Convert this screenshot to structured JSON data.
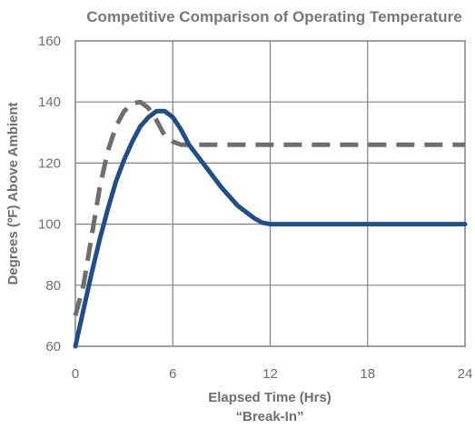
{
  "chart_data": {
    "type": "line",
    "title": "Competitive Comparison of Operating Temperature",
    "xlabel": "Elapsed Time (Hrs)",
    "xlabel_sub": "“Break-In”",
    "ylabel": "Degrees (ºF) Above Ambient",
    "xlim": [
      0,
      24
    ],
    "ylim": [
      60,
      160
    ],
    "xticks": [
      0,
      6,
      12,
      18,
      24
    ],
    "yticks": [
      60,
      80,
      100,
      120,
      140,
      160
    ],
    "grid": true,
    "legend": "none",
    "series": [
      {
        "color": "#1f4e89",
        "style": "solid",
        "x": [
          0,
          0.5,
          1,
          1.5,
          2,
          2.5,
          3,
          3.5,
          4,
          4.5,
          5,
          5.5,
          6,
          6.5,
          7,
          8,
          9,
          10,
          11,
          11.5,
          12,
          13,
          14,
          16,
          18,
          20,
          22,
          24
        ],
        "y": [
          60,
          72,
          84,
          95,
          105,
          114,
          121,
          127,
          132,
          135,
          137,
          137,
          135,
          131,
          126,
          119,
          112,
          106,
          102,
          100.5,
          100,
          100,
          100,
          100,
          100,
          100,
          100,
          100
        ]
      },
      {
        "color": "#6e6e6e",
        "style": "dashed",
        "x": [
          0,
          0.5,
          1,
          1.5,
          2,
          2.5,
          3,
          3.5,
          4,
          4.5,
          5,
          5.5,
          6,
          6.5,
          7,
          8,
          9,
          10,
          12,
          14,
          16,
          18,
          20,
          22,
          24
        ],
        "y": [
          70,
          80,
          96,
          112,
          124,
          132,
          137,
          139.5,
          140,
          138,
          134,
          129,
          127,
          126,
          126,
          126,
          126,
          126,
          126,
          126,
          126,
          126,
          126,
          126,
          126
        ]
      }
    ]
  }
}
